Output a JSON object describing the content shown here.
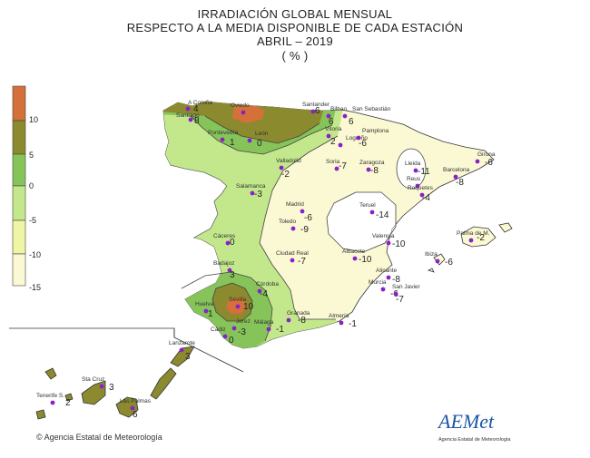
{
  "title": {
    "line1": "IRRADIACIÓN GLOBAL MENSUAL",
    "line2": "RESPECTO A LA MEDIA DISPONIBLE DE CADA ESTACIÓN",
    "line3": "ABRIL  – 2019",
    "line4": "( % )"
  },
  "legend": {
    "classes": [
      {
        "color": "#d4703a"
      },
      {
        "color": "#8c8a2e"
      },
      {
        "color": "#86c45a"
      },
      {
        "color": "#c3e88c"
      },
      {
        "color": "#eef5a4"
      },
      {
        "color": "#fbf9d3"
      },
      {
        "color": "#ffffff"
      }
    ],
    "labels": [
      "10",
      "5",
      "0",
      "-5",
      "-10",
      "-15"
    ]
  },
  "stations": [
    {
      "name": "A Coruña",
      "value": "4"
    },
    {
      "name": "Santiago",
      "value": "8"
    },
    {
      "name": "Oviedo",
      "value": ""
    },
    {
      "name": "Santander",
      "value": "6"
    },
    {
      "name": "Bilbao",
      "value": "6"
    },
    {
      "name": "San Sebastián",
      "value": "6"
    },
    {
      "name": "Pontevedra",
      "value": "1"
    },
    {
      "name": "León",
      "value": "0"
    },
    {
      "name": "Vitoria",
      "value": "2"
    },
    {
      "name": "Logroño",
      "value": ""
    },
    {
      "name": "Pamplona",
      "value": "-6"
    },
    {
      "name": "Valladolid",
      "value": "-2"
    },
    {
      "name": "Soria",
      "value": "-7"
    },
    {
      "name": "Zaragoza",
      "value": "-8"
    },
    {
      "name": "Lleida",
      "value": "-11"
    },
    {
      "name": "Girona",
      "value": "-6"
    },
    {
      "name": "Barcelona",
      "value": "-8"
    },
    {
      "name": "Reus",
      "value": ""
    },
    {
      "name": "Roquetes",
      "value": "-4"
    },
    {
      "name": "Salamanca",
      "value": "-3"
    },
    {
      "name": "Madrid",
      "value": "-6"
    },
    {
      "name": "Teruel",
      "value": "-14"
    },
    {
      "name": "Toledo",
      "value": "-9"
    },
    {
      "name": "Cáceres",
      "value": "0"
    },
    {
      "name": "Palma de M.",
      "value": "-2"
    },
    {
      "name": "Ciudad Real",
      "value": "-7"
    },
    {
      "name": "Valencia",
      "value": "-10"
    },
    {
      "name": "Albacete",
      "value": "-10"
    },
    {
      "name": "Ibiza",
      "value": "-6"
    },
    {
      "name": "Badajoz",
      "value": "3"
    },
    {
      "name": "Alicante",
      "value": "-8"
    },
    {
      "name": "Córdoba",
      "value": "-4"
    },
    {
      "name": "Murcia",
      "value": "-6"
    },
    {
      "name": "San Javier",
      "value": "-7"
    },
    {
      "name": "Huelva",
      "value": "1"
    },
    {
      "name": "Sevilla",
      "value": "10"
    },
    {
      "name": "Granada",
      "value": "-8"
    },
    {
      "name": "Almería",
      "value": "-1"
    },
    {
      "name": "Málaga",
      "value": "-1"
    },
    {
      "name": "Jerez",
      "value": "-3"
    },
    {
      "name": "Cádiz",
      "value": "0"
    },
    {
      "name": "Lanzarote",
      "value": "3"
    },
    {
      "name": "Sta Cruz",
      "value": "3"
    },
    {
      "name": "Tenerife S.",
      "value": "2"
    },
    {
      "name": "Las Palmas",
      "value": "6"
    }
  ],
  "footer": {
    "copyright": "© Agencia Estatal de Meteorología",
    "logo_text": "AEMet",
    "logo_sub": "Agencia Estatal de Meteorología"
  }
}
